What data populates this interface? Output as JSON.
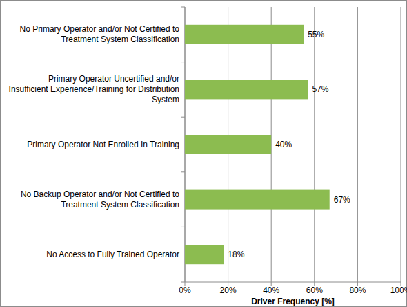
{
  "chart_data": {
    "type": "bar",
    "orientation": "horizontal",
    "categories": [
      "No Primary Operator and/or Not Certified to Treatment System Classification",
      "Primary Operator Uncertified and/or Insufficient Experience/Training for Distribution System",
      "Primary Operator Not Enrolled In Training",
      "No Backup Operator and/or Not Certified to Treatment System Classification",
      "No Access to Fully Trained Operator"
    ],
    "values": [
      55,
      57,
      40,
      67,
      18
    ],
    "value_labels": [
      "55%",
      "57%",
      "40%",
      "67%",
      "18%"
    ],
    "data_labels": true,
    "color": "#8cbc50",
    "x_label": "Driver Frequency [%]",
    "xlim": [
      0,
      100
    ],
    "xticks": [
      {
        "value": 0,
        "label": "0%"
      },
      {
        "value": 20,
        "label": "20%"
      },
      {
        "value": 40,
        "label": "40%"
      },
      {
        "value": 60,
        "label": "60%"
      },
      {
        "value": 80,
        "label": "80%"
      },
      {
        "value": 100,
        "label": "100%"
      }
    ],
    "grid": true
  }
}
